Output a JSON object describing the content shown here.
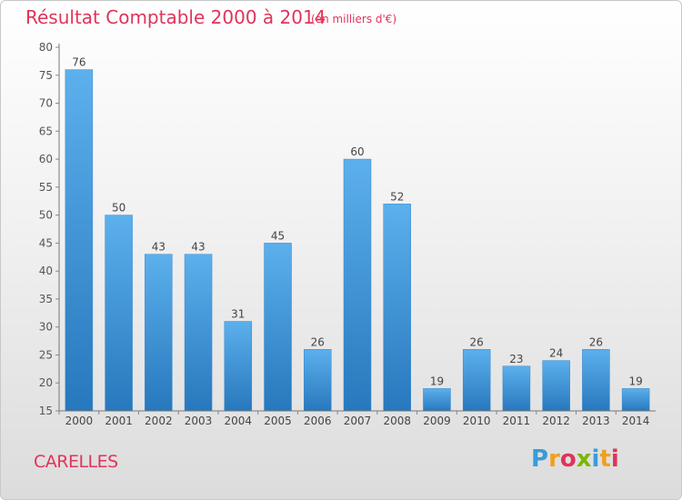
{
  "chart_data": {
    "type": "bar",
    "title": "Résultat Comptable 2000 à 2014",
    "subtitle": "(en milliers d'€)",
    "categories": [
      "2000",
      "2001",
      "2002",
      "2003",
      "2004",
      "2005",
      "2006",
      "2007",
      "2008",
      "2009",
      "2010",
      "2011",
      "2012",
      "2013",
      "2014"
    ],
    "values": [
      76,
      50,
      43,
      43,
      31,
      45,
      26,
      60,
      52,
      19,
      26,
      23,
      24,
      26,
      19
    ],
    "ylim": [
      15,
      80
    ],
    "yticks": [
      15,
      20,
      25,
      30,
      35,
      40,
      45,
      50,
      55,
      60,
      65,
      70,
      75,
      80
    ],
    "xlabel": "",
    "ylabel": "",
    "grid": false,
    "bar_color": "#4a9fe0"
  },
  "footer": {
    "commune": "CARELLES",
    "logo": {
      "letters": [
        "P",
        "r",
        "o",
        "x",
        "i",
        "t",
        "i"
      ],
      "colors": [
        "#3a9bd9",
        "#f0a020",
        "#e0345a",
        "#7ab800",
        "#3a9bd9",
        "#f0a020",
        "#e0345a"
      ]
    }
  },
  "colors": {
    "accent": "#e0345a",
    "axis": "#555555"
  }
}
